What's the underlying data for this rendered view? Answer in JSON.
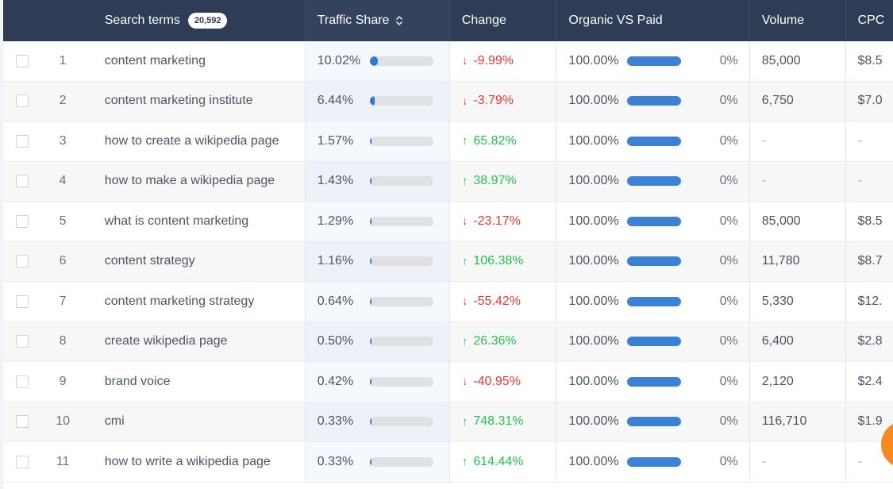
{
  "header": {
    "search_terms_label": "Search terms",
    "search_terms_count": "20,592",
    "traffic_share_label": "Traffic Share",
    "change_label": "Change",
    "organic_vs_paid_label": "Organic VS Paid",
    "volume_label": "Volume",
    "cpc_label": "CPC"
  },
  "colors": {
    "header_bg": "#2f3c55",
    "traffic_bar": "#2f7bd1",
    "organic_bar": "#3b82d6",
    "down": "#e53935",
    "up": "#27c24c",
    "fab": "#f68a1e"
  },
  "rows": [
    {
      "num": "1",
      "term": "content marketing",
      "traffic_share": "10.02%",
      "traffic_fill": 0.1002,
      "change": "-9.99%",
      "direction": "down",
      "organic": "100.00%",
      "paid": "0%",
      "volume": "85,000",
      "cpc": "$8.5"
    },
    {
      "num": "2",
      "term": "content marketing institute",
      "traffic_share": "6.44%",
      "traffic_fill": 0.0644,
      "change": "-3.79%",
      "direction": "down",
      "organic": "100.00%",
      "paid": "0%",
      "volume": "6,750",
      "cpc": "$7.0"
    },
    {
      "num": "3",
      "term": "how to create a wikipedia page",
      "traffic_share": "1.57%",
      "traffic_fill": 0.0157,
      "change": "65.82%",
      "direction": "up",
      "organic": "100.00%",
      "paid": "0%",
      "volume": "-",
      "cpc": "-"
    },
    {
      "num": "4",
      "term": "how to make a wikipedia page",
      "traffic_share": "1.43%",
      "traffic_fill": 0.0143,
      "change": "38.97%",
      "direction": "up",
      "organic": "100.00%",
      "paid": "0%",
      "volume": "-",
      "cpc": "-"
    },
    {
      "num": "5",
      "term": "what is content marketing",
      "traffic_share": "1.29%",
      "traffic_fill": 0.0129,
      "change": "-23.17%",
      "direction": "down",
      "organic": "100.00%",
      "paid": "0%",
      "volume": "85,000",
      "cpc": "$8.5"
    },
    {
      "num": "6",
      "term": "content strategy",
      "traffic_share": "1.16%",
      "traffic_fill": 0.0116,
      "change": "106.38%",
      "direction": "up",
      "organic": "100.00%",
      "paid": "0%",
      "volume": "11,780",
      "cpc": "$8.7"
    },
    {
      "num": "7",
      "term": "content marketing strategy",
      "traffic_share": "0.64%",
      "traffic_fill": 0.0064,
      "change": "-55.42%",
      "direction": "down",
      "organic": "100.00%",
      "paid": "0%",
      "volume": "5,330",
      "cpc": "$12."
    },
    {
      "num": "8",
      "term": "create wikipedia page",
      "traffic_share": "0.50%",
      "traffic_fill": 0.005,
      "change": "26.36%",
      "direction": "up",
      "organic": "100.00%",
      "paid": "0%",
      "volume": "6,400",
      "cpc": "$2.8"
    },
    {
      "num": "9",
      "term": "brand voice",
      "traffic_share": "0.42%",
      "traffic_fill": 0.0042,
      "change": "-40.95%",
      "direction": "down",
      "organic": "100.00%",
      "paid": "0%",
      "volume": "2,120",
      "cpc": "$2.4"
    },
    {
      "num": "10",
      "term": "cmi",
      "traffic_share": "0.33%",
      "traffic_fill": 0.0033,
      "change": "748.31%",
      "direction": "up",
      "organic": "100.00%",
      "paid": "0%",
      "volume": "116,710",
      "cpc": "$1.9"
    },
    {
      "num": "11",
      "term": "how to write a wikipedia page",
      "traffic_share": "0.33%",
      "traffic_fill": 0.0033,
      "change": "614.44%",
      "direction": "up",
      "organic": "100.00%",
      "paid": "0%",
      "volume": "-",
      "cpc": "-"
    }
  ]
}
